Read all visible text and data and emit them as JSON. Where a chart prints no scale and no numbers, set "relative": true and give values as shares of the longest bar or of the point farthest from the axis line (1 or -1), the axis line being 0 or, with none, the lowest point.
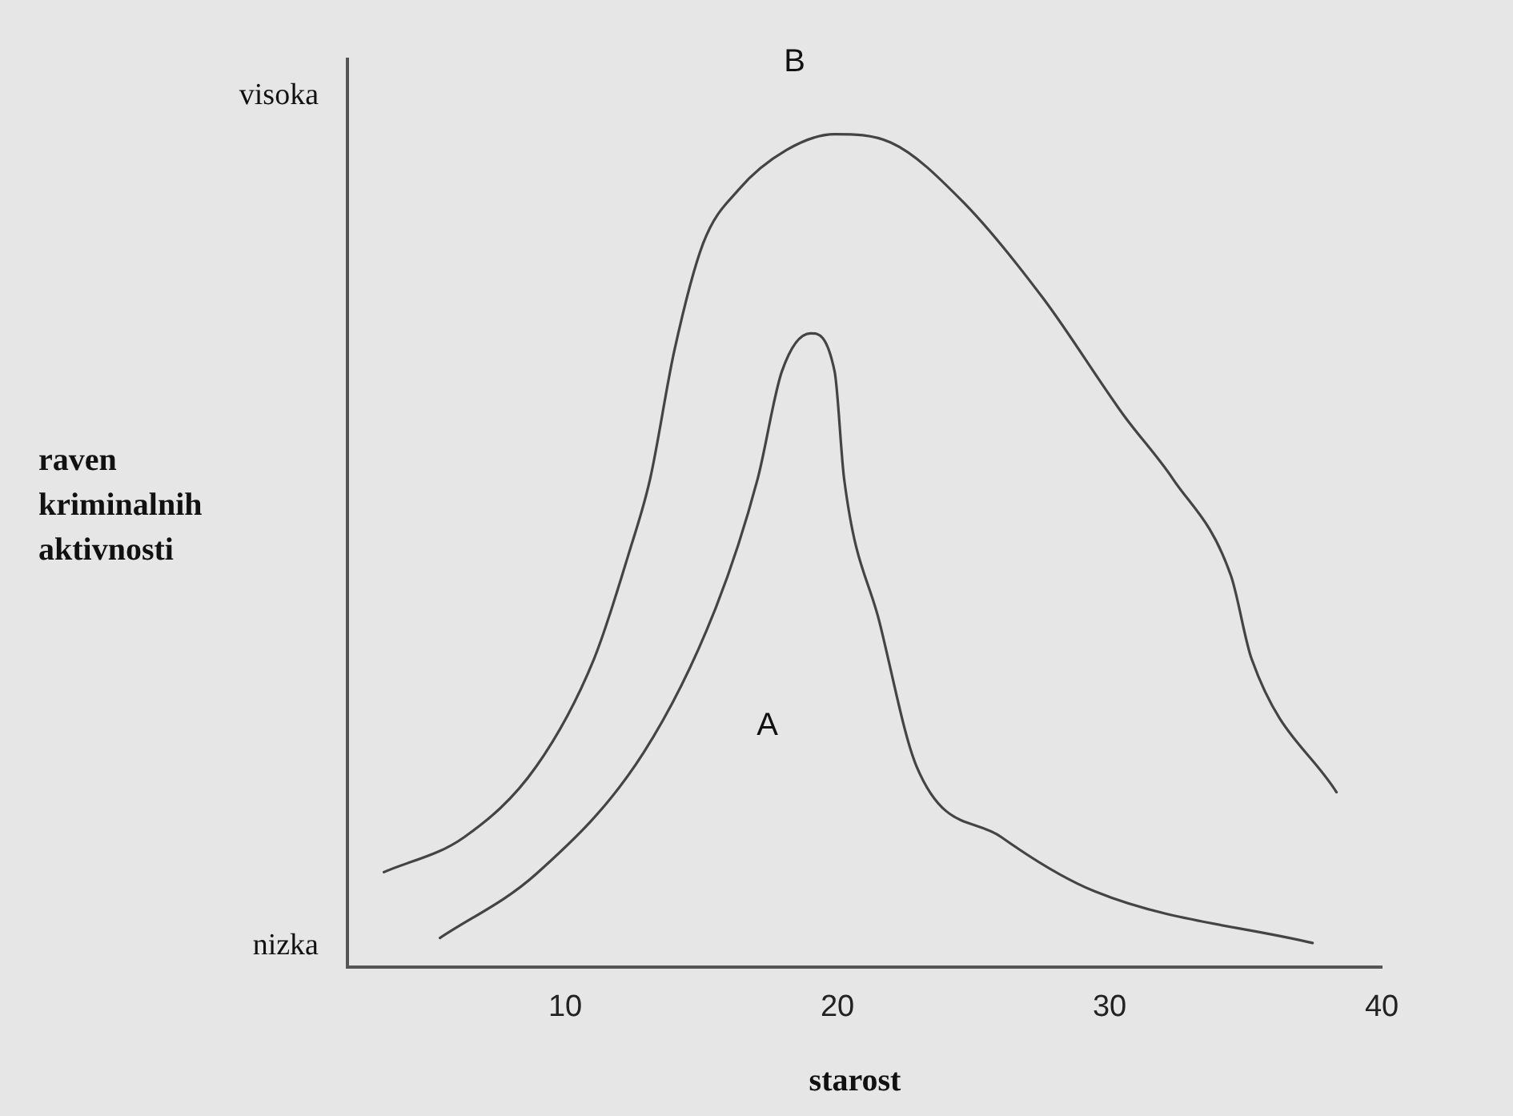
{
  "chart_data": {
    "type": "line",
    "relative": true,
    "xlabel": "starost",
    "ylabel": "raven kriminalnih aktivnosti",
    "annotations": [
      "visoka",
      "nizka"
    ],
    "xlim": [
      2,
      40
    ],
    "xticks": [
      10,
      20,
      30,
      40
    ],
    "grid": false,
    "legend": false,
    "marker": "none",
    "line_style": "solid",
    "series": [
      {
        "name": "B",
        "color": "#444444",
        "x": [
          3.34,
          6.29,
          8.94,
          11.06,
          12.36,
          13.12,
          14.01,
          15.07,
          16.36,
          18.13,
          19.9,
          21.96,
          24.61,
          27.56,
          30.51,
          32.33,
          34.46,
          35.22,
          38.34
        ],
        "values": [
          0.114,
          0.156,
          0.241,
          0.37,
          0.499,
          0.586,
          0.74,
          0.869,
          0.933,
          0.981,
          1.0,
          0.99,
          0.919,
          0.803,
          0.663,
          0.586,
          0.47,
          0.37,
          0.21
        ]
      },
      {
        "name": "A",
        "color": "#444444",
        "x": [
          5.4,
          8.94,
          12.89,
          15.54,
          17.07,
          17.96,
          19.02,
          19.9,
          20.25,
          21.55,
          22.91,
          26.03,
          29.45,
          37.46
        ],
        "values": [
          0.035,
          0.112,
          0.258,
          0.432,
          0.586,
          0.715,
          0.761,
          0.715,
          0.586,
          0.414,
          0.241,
          0.156,
          0.091,
          0.029
        ]
      }
    ]
  }
}
